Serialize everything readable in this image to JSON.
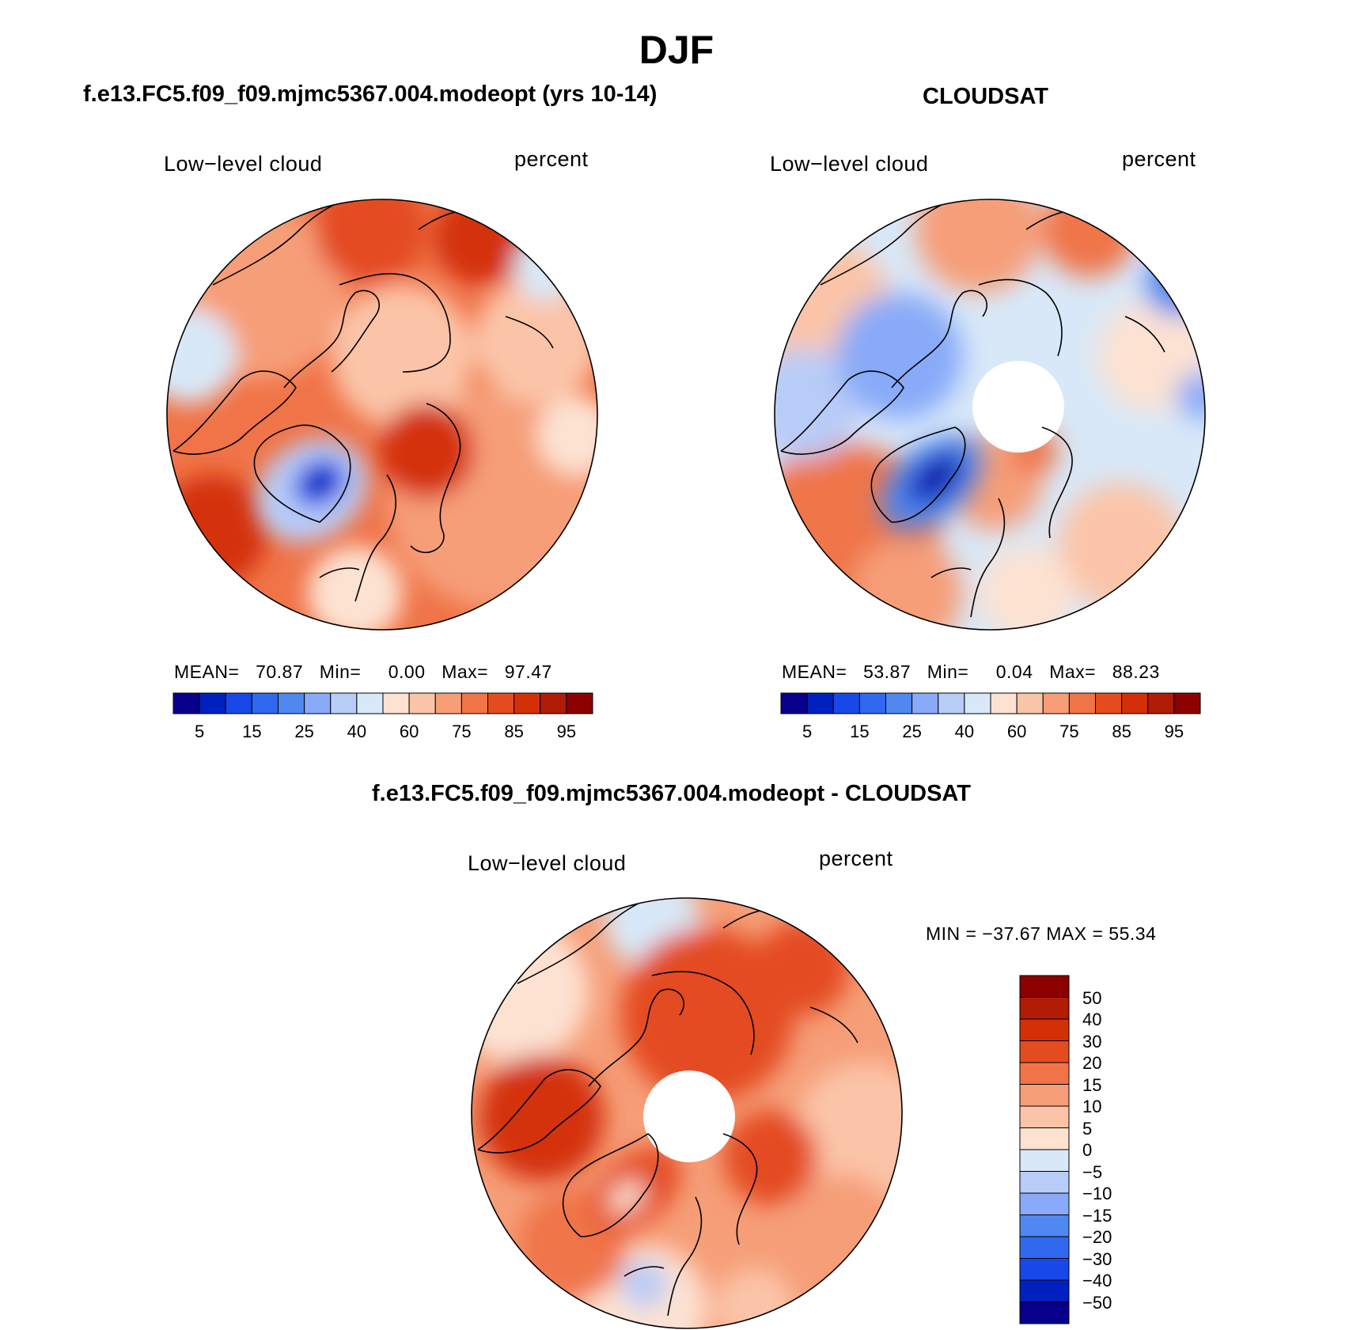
{
  "header": {
    "title": "DJF"
  },
  "palette": {
    "sequential": [
      "#08008c",
      "#0020c0",
      "#1848e8",
      "#3068f0",
      "#5088f0",
      "#88aaf8",
      "#b8ccf8",
      "#d8e8f8",
      "#fde2d2",
      "#fbc4a8",
      "#f69e78",
      "#f07448",
      "#e44c20",
      "#d43008",
      "#b01c04",
      "#8c0000"
    ],
    "difference": [
      "#8c0000",
      "#b01c04",
      "#d43008",
      "#e44c20",
      "#f07448",
      "#f69e78",
      "#fbc4a8",
      "#fde2d2",
      "#d8e8f8",
      "#b8ccf8",
      "#88aaf8",
      "#5088f0",
      "#3068f0",
      "#1848e8",
      "#0020c0",
      "#08008c"
    ]
  },
  "panels": {
    "model": {
      "title": "f.e13.FC5.f09_f09.mjmc5367.004.modeopt (yrs 10-14)",
      "left_label": "Low−level cloud",
      "right_label": "percent",
      "stats": {
        "mean_label": "MEAN=",
        "mean": "70.87",
        "min_label": "Min=",
        "min": "0.00",
        "max_label": "Max=",
        "max": "97.47"
      },
      "colorbar_ticks": [
        "5",
        "15",
        "25",
        "40",
        "60",
        "75",
        "85",
        "95"
      ]
    },
    "obs": {
      "title": "CLOUDSAT",
      "left_label": "Low−level cloud",
      "right_label": "percent",
      "stats": {
        "mean_label": "MEAN=",
        "mean": "53.87",
        "min_label": "Min=",
        "min": "0.04",
        "max_label": "Max=",
        "max": "88.23"
      },
      "colorbar_ticks": [
        "5",
        "15",
        "25",
        "40",
        "60",
        "75",
        "85",
        "95"
      ]
    },
    "diff": {
      "title": "f.e13.FC5.f09_f09.mjmc5367.004.modeopt - CLOUDSAT",
      "left_label": "Low−level cloud",
      "right_label": "percent",
      "minmax": "MIN = −37.67 MAX =   55.34",
      "colorbar_ticks": [
        "50",
        "40",
        "30",
        "20",
        "15",
        "10",
        "5",
        "0",
        "−5",
        "−10",
        "−15",
        "−20",
        "−30",
        "−40",
        "−50"
      ]
    }
  }
}
